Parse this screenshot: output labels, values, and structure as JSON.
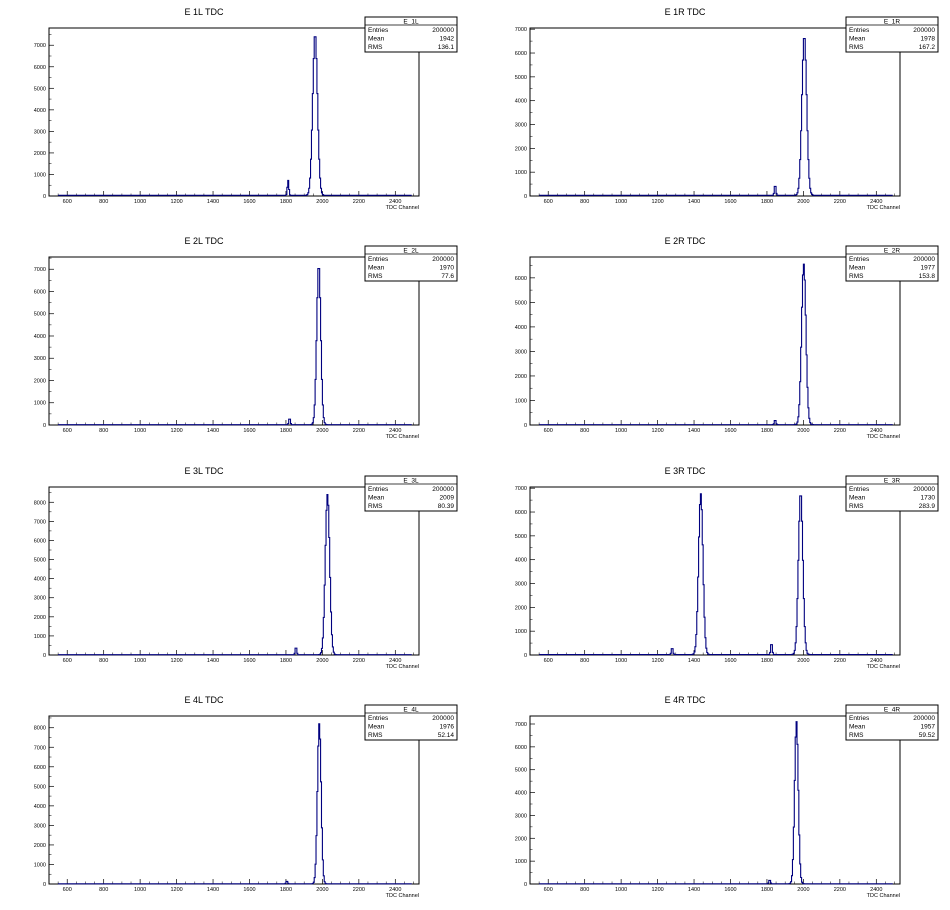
{
  "chart_data": [
    {
      "type": "histogram",
      "title": "E 1L TDC",
      "xlabel": "TDC Channel",
      "xlim": [
        500,
        2530
      ],
      "ylim": [
        0,
        7800
      ],
      "xticks": [
        600,
        800,
        1000,
        1200,
        1400,
        1600,
        1800,
        2000,
        2200,
        2400
      ],
      "yticks": [
        0,
        1000,
        2000,
        3000,
        4000,
        5000,
        6000,
        7000
      ],
      "stats": {
        "name": "E_1L",
        "entries_label": "Entries",
        "entries": "200000",
        "mean_label": "Mean",
        "mean": "1942",
        "rms_label": "RMS",
        "rms": "136.1"
      },
      "peaks": [
        {
          "center": 1960,
          "height": 7500,
          "sigma": 13
        },
        {
          "center": 1812,
          "height": 700,
          "sigma": 4
        }
      ],
      "baseline": 30
    },
    {
      "type": "histogram",
      "title": "E 1R TDC",
      "xlabel": "TDC Channel",
      "xlim": [
        500,
        2530
      ],
      "ylim": [
        0,
        7050
      ],
      "xticks": [
        600,
        800,
        1000,
        1200,
        1400,
        1600,
        1800,
        2000,
        2200,
        2400
      ],
      "yticks": [
        0,
        1000,
        2000,
        3000,
        4000,
        5000,
        6000,
        7000
      ],
      "stats": {
        "name": "E_1R",
        "entries_label": "Entries",
        "entries": "200000",
        "mean_label": "Mean",
        "mean": "1978",
        "rms_label": "RMS",
        "rms": "167.2"
      },
      "peaks": [
        {
          "center": 2005,
          "height": 6700,
          "sigma": 13
        },
        {
          "center": 1845,
          "height": 450,
          "sigma": 4
        }
      ],
      "baseline": 30
    },
    {
      "type": "histogram",
      "title": "E 2L TDC",
      "xlabel": "TDC Channel",
      "xlim": [
        500,
        2530
      ],
      "ylim": [
        0,
        7550
      ],
      "xticks": [
        600,
        800,
        1000,
        1200,
        1400,
        1600,
        1800,
        2000,
        2200,
        2400
      ],
      "yticks": [
        0,
        1000,
        2000,
        3000,
        4000,
        5000,
        6000,
        7000
      ],
      "stats": {
        "name": "E_2L",
        "entries_label": "Entries",
        "entries": "200000",
        "mean_label": "Mean",
        "mean": "1970",
        "rms_label": "RMS",
        "rms": "77.6"
      },
      "peaks": [
        {
          "center": 1980,
          "height": 7200,
          "sigma": 11
        },
        {
          "center": 1820,
          "height": 300,
          "sigma": 4
        }
      ],
      "baseline": 15
    },
    {
      "type": "histogram",
      "title": "E 2R TDC",
      "xlabel": "TDC Channel",
      "xlim": [
        500,
        2530
      ],
      "ylim": [
        0,
        6850
      ],
      "xticks": [
        600,
        800,
        1000,
        1200,
        1400,
        1600,
        1800,
        2000,
        2200,
        2400
      ],
      "yticks": [
        0,
        1000,
        2000,
        3000,
        4000,
        5000,
        6000
      ],
      "stats": {
        "name": "E_2R",
        "entries_label": "Entries",
        "entries": "200000",
        "mean_label": "Mean",
        "mean": "1977",
        "rms_label": "RMS",
        "rms": "153.8"
      },
      "peaks": [
        {
          "center": 2002,
          "height": 6550,
          "sigma": 12
        },
        {
          "center": 1845,
          "height": 200,
          "sigma": 4
        }
      ],
      "baseline": 15
    },
    {
      "type": "histogram",
      "title": "E 3L TDC",
      "xlabel": "TDC Channel",
      "xlim": [
        500,
        2530
      ],
      "ylim": [
        0,
        8800
      ],
      "xticks": [
        600,
        800,
        1000,
        1200,
        1400,
        1600,
        1800,
        2000,
        2200,
        2400
      ],
      "yticks": [
        0,
        1000,
        2000,
        3000,
        4000,
        5000,
        6000,
        7000,
        8000
      ],
      "stats": {
        "name": "E_3L",
        "entries_label": "Entries",
        "entries": "200000",
        "mean_label": "Mean",
        "mean": "2009",
        "rms_label": "RMS",
        "rms": "80.39"
      },
      "peaks": [
        {
          "center": 2028,
          "height": 8400,
          "sigma": 12
        },
        {
          "center": 1855,
          "height": 420,
          "sigma": 4
        }
      ],
      "baseline": 15
    },
    {
      "type": "histogram",
      "title": "E 3R TDC",
      "xlabel": "TDC Channel",
      "xlim": [
        500,
        2530
      ],
      "ylim": [
        0,
        7050
      ],
      "xticks": [
        600,
        800,
        1000,
        1200,
        1400,
        1600,
        1800,
        2000,
        2200,
        2400
      ],
      "yticks": [
        0,
        1000,
        2000,
        3000,
        4000,
        5000,
        6000,
        7000
      ],
      "stats": {
        "name": "E_3R",
        "entries_label": "Entries",
        "entries": "200000",
        "mean_label": "Mean",
        "mean": "1730",
        "rms_label": "RMS",
        "rms": "283.9"
      },
      "peaks": [
        {
          "center": 1437,
          "height": 6750,
          "sigma": 12
        },
        {
          "center": 1985,
          "height": 6800,
          "sigma": 12
        },
        {
          "center": 1280,
          "height": 300,
          "sigma": 4
        },
        {
          "center": 1825,
          "height": 500,
          "sigma": 4
        }
      ],
      "baseline": 20
    },
    {
      "type": "histogram",
      "title": "E 4L TDC",
      "xlabel": "TDC Channel",
      "xlim": [
        500,
        2530
      ],
      "ylim": [
        0,
        8600
      ],
      "xticks": [
        600,
        800,
        1000,
        1200,
        1400,
        1600,
        1800,
        2000,
        2200,
        2400
      ],
      "yticks": [
        0,
        1000,
        2000,
        3000,
        4000,
        5000,
        6000,
        7000,
        8000
      ],
      "stats": {
        "name": "E_4L",
        "entries_label": "Entries",
        "entries": "200000",
        "mean_label": "Mean",
        "mean": "1976",
        "rms_label": "RMS",
        "rms": "52.14"
      },
      "peaks": [
        {
          "center": 1983,
          "height": 8200,
          "sigma": 10
        },
        {
          "center": 1805,
          "height": 150,
          "sigma": 4
        }
      ],
      "baseline": 10
    },
    {
      "type": "histogram",
      "title": "E 4R TDC",
      "xlabel": "TDC Channel",
      "xlim": [
        500,
        2530
      ],
      "ylim": [
        0,
        7350
      ],
      "xticks": [
        600,
        800,
        1000,
        1200,
        1400,
        1600,
        1800,
        2000,
        2200,
        2400
      ],
      "yticks": [
        0,
        1000,
        2000,
        3000,
        4000,
        5000,
        6000,
        7000
      ],
      "stats": {
        "name": "E_4R",
        "entries_label": "Entries",
        "entries": "200000",
        "mean_label": "Mean",
        "mean": "1957",
        "rms_label": "RMS",
        "rms": "59.52"
      },
      "peaks": [
        {
          "center": 1962,
          "height": 7100,
          "sigma": 10
        },
        {
          "center": 1815,
          "height": 180,
          "sigma": 4
        }
      ],
      "baseline": 10
    }
  ],
  "colors": {
    "histogram_line": "#00007f",
    "axis": "#000000",
    "background": "#ffffff"
  }
}
